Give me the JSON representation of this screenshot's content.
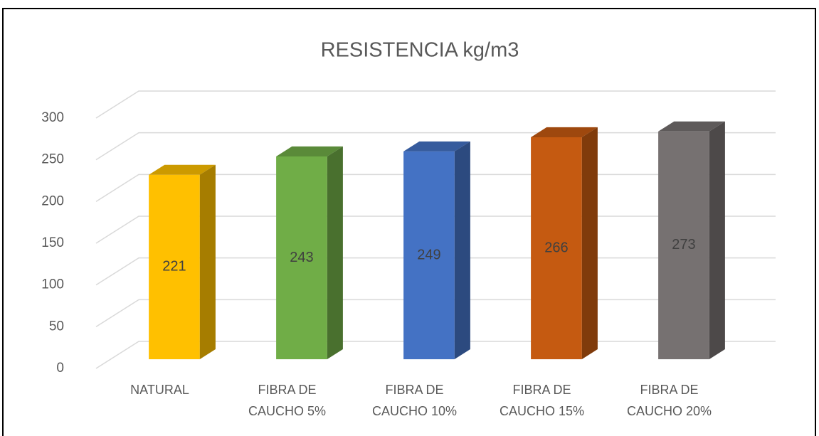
{
  "chart_data": {
    "type": "bar3d",
    "title": "RESISTENCIA kg/m3",
    "categories": [
      "NATURAL",
      "FIBRA DE CAUCHO 5%",
      "FIBRA DE CAUCHO 10%",
      "FIBRA DE CAUCHO 15%",
      "FIBRA DE CAUCHO 20%"
    ],
    "values": [
      221,
      243,
      249,
      266,
      273
    ],
    "colors": [
      "#ffc000",
      "#70ad47",
      "#4472c4",
      "#c55a11",
      "#767171"
    ],
    "ylim": [
      0,
      300
    ],
    "yticks": [
      0,
      50,
      100,
      150,
      200,
      250,
      300
    ],
    "grid": true
  }
}
